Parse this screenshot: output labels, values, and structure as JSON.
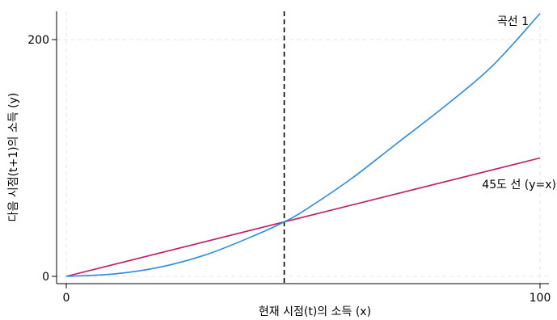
{
  "chart_data": {
    "type": "line",
    "xlabel": "현재 시점(t)의 소득 (x)",
    "ylabel": "다음 시점(t+1)의 소득 (y)",
    "xlim": [
      0,
      100
    ],
    "ylim": [
      0,
      220
    ],
    "x_ticks": [
      0,
      100
    ],
    "y_ticks": [
      0,
      200
    ],
    "grid": true,
    "vline_x": 46,
    "series": [
      {
        "name": "곡선 1",
        "color": "#2b8be6",
        "x": [
          0,
          10,
          20,
          30,
          40,
          46,
          50,
          60,
          70,
          80,
          90,
          100
        ],
        "y": [
          0,
          2,
          8,
          19,
          35,
          46,
          55,
          82,
          113,
          144,
          178,
          222
        ]
      },
      {
        "name": "45도 선 (y=x)",
        "color": "#c21f67",
        "x": [
          0,
          100
        ],
        "y": [
          0,
          100
        ]
      }
    ]
  }
}
